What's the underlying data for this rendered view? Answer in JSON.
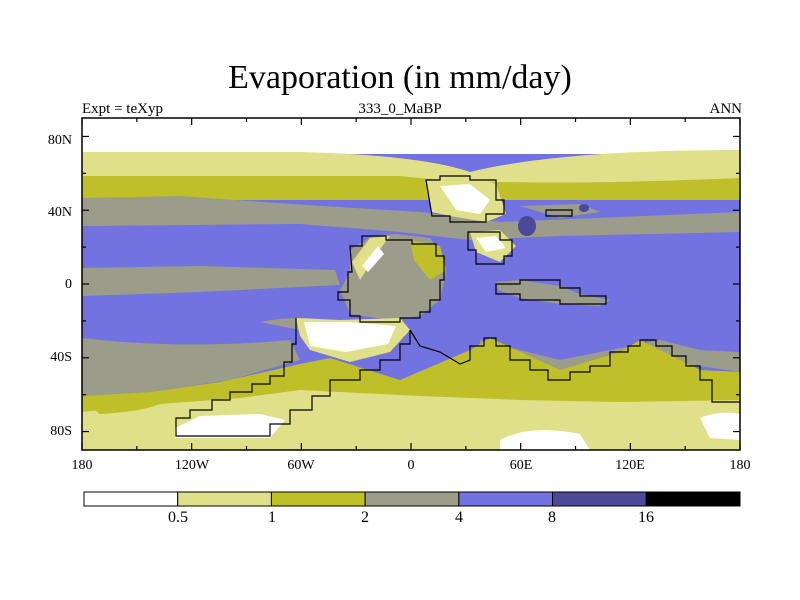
{
  "title": "Evaporation (in mm/day)",
  "subtitle_left": "Expt = teXyp",
  "subtitle_center": "333_0_MaBP",
  "subtitle_right": "ANN",
  "lat_ticks": [
    "80N",
    "40N",
    "0",
    "40S",
    "80S"
  ],
  "lon_ticks": [
    "180",
    "120W",
    "60W",
    "0",
    "60E",
    "120E",
    "180"
  ],
  "colorbar": {
    "levels": [
      "0.5",
      "1",
      "2",
      "4",
      "8",
      "16"
    ],
    "colors": [
      "#ffffff",
      "#e0e08a",
      "#bfbf2a",
      "#9c9c8a",
      "#7272e0",
      "#4a4a98",
      "#000000"
    ]
  },
  "map_colors": {
    "lt05": "#ffffff",
    "c05_1": "#e0e08a",
    "c1_2": "#bfbf2a",
    "c2_4": "#9c9c8a",
    "c4_8": "#7272e0",
    "c8_16": "#4a4a98"
  }
}
